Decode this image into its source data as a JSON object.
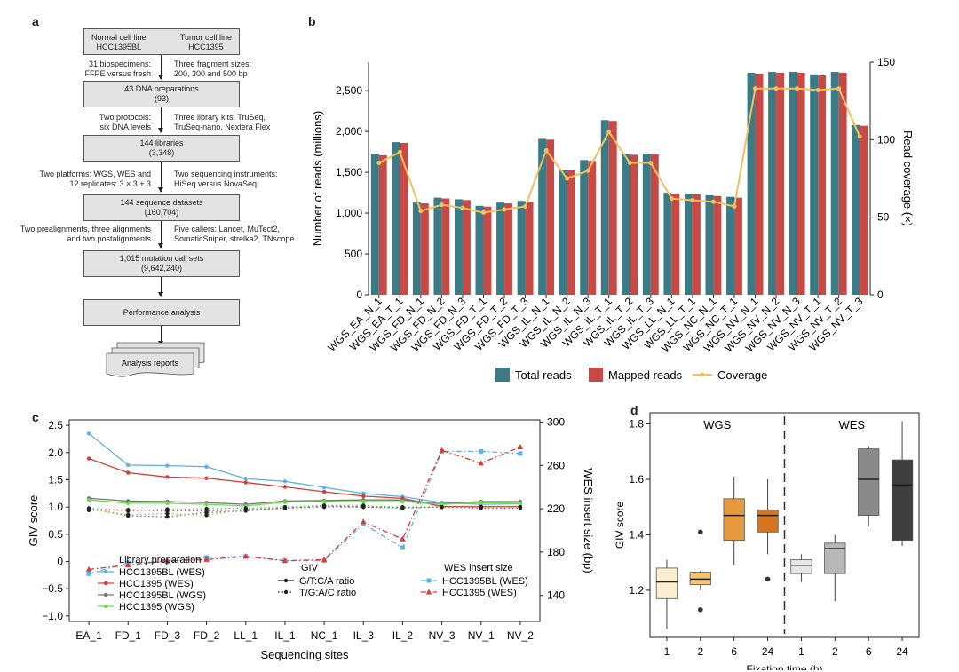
{
  "panels": {
    "a": "a",
    "b": "b",
    "c": "c",
    "d": "d"
  },
  "flow": {
    "normal": [
      "Normal cell line",
      "HCC1395BL"
    ],
    "tumor": [
      "Tumor cell line",
      "HCC1395"
    ],
    "step1_left": [
      "31 biospecimens:",
      "FFPE versus fresh"
    ],
    "step1_right": [
      "Three fragment sizes:",
      "200, 300 and 500 bp"
    ],
    "box_dna": [
      "43 DNA preparations",
      "(93)"
    ],
    "step2_left": [
      "Two protocols:",
      "six DNA levels"
    ],
    "step2_right": [
      "Three library kits: TruSeq,",
      "TruSeq-nano, Nextera Flex"
    ],
    "box_lib": [
      "144 libraries",
      "(3,348)"
    ],
    "step3_left": [
      "Two platforms: WGS, WES and",
      "12 replicates: 3 × 3 + 3"
    ],
    "step3_right": [
      "Two sequencing instruments:",
      "HiSeq versus NovaSeq"
    ],
    "box_seq": [
      "144 sequence datasets",
      "(160,704)"
    ],
    "step4_left": [
      "Two prealignments, three alignments",
      "and two postalignments"
    ],
    "step4_right": [
      "Five callers: Lancet, MuTect2,",
      "SomaticSniper, strelka2, TNscope"
    ],
    "box_calls": [
      "1,015 mutation call sets",
      "(9,642,240)"
    ],
    "box_perf": "Performance analysis",
    "box_reports": "Analysis reports"
  },
  "chart_data": [
    {
      "panel": "b",
      "type": "bar",
      "categories": [
        "WGS_EA_N_1",
        "WGS_EA_T_1",
        "WGS_FD_N_1",
        "WGS_FD_N_2",
        "WGS_FD_N_3",
        "WGS_FD_T_1",
        "WGS_FD_T_2",
        "WGS_FD_T_3",
        "WGS_IL_N_1",
        "WGS_IL_N_2",
        "WGS_IL_N_3",
        "WGS_IL_T_1",
        "WGS_IL_T_2",
        "WGS_IL_T_3",
        "WGS_LL_N_1",
        "WGS_LL_T_1",
        "WGS_NC_N_1",
        "WGS_NC_T_1",
        "WGS_NV_N_1",
        "WGS_NV_N_2",
        "WGS_NV_N_3",
        "WGS_NV_T_1",
        "WGS_NV_T_2",
        "WGS_NV_T_3"
      ],
      "series": [
        {
          "name": "Total reads",
          "color": "#3a7b85",
          "values": [
            1720,
            1870,
            1130,
            1190,
            1170,
            1090,
            1130,
            1150,
            1910,
            1530,
            1650,
            2140,
            1720,
            1730,
            1250,
            1240,
            1220,
            1200,
            2720,
            2730,
            2730,
            2700,
            2730,
            2080
          ]
        },
        {
          "name": "Mapped reads",
          "color": "#c84a46",
          "values": [
            1710,
            1860,
            1120,
            1180,
            1160,
            1080,
            1120,
            1140,
            1900,
            1525,
            1640,
            2130,
            1715,
            1720,
            1240,
            1230,
            1210,
            1190,
            2710,
            2720,
            2720,
            2690,
            2720,
            2070
          ]
        },
        {
          "name": "Coverage",
          "color": "#f2c05c",
          "axis": "right",
          "values": [
            85,
            92,
            54,
            58,
            56,
            53,
            55,
            57,
            93,
            75,
            80,
            105,
            85,
            85,
            62,
            61,
            60,
            57,
            133,
            133,
            133,
            132,
            133,
            102
          ]
        }
      ],
      "ylabel": "Number of reads (millions)",
      "y2label": "Read coverage (×)",
      "ylim": [
        0,
        2850
      ],
      "yticks": [
        0,
        500,
        1000,
        1500,
        2000,
        2500
      ],
      "ytick_labels": [
        "0",
        "500",
        "1,000",
        "1,500",
        "2,000",
        "2,500"
      ],
      "y2lim": [
        0,
        150
      ],
      "y2ticks": [
        0,
        50,
        100,
        150
      ],
      "legend": [
        "Total reads",
        "Mapped reads",
        "Coverage"
      ],
      "legend_position": "bottom"
    },
    {
      "panel": "c",
      "type": "line",
      "categories": [
        "EA_1",
        "FD_1",
        "FD_3",
        "FD_2",
        "LL_1",
        "IL_1",
        "NC_1",
        "IL_3",
        "IL_2",
        "NV_3",
        "NV_1",
        "NV_2"
      ],
      "xlabel": "Sequencing sites",
      "ylabel": "GIV score",
      "y2label": "WES insert size (bp)",
      "ylim": [
        -1.1,
        2.6
      ],
      "yticks": [
        -1.0,
        -0.5,
        0,
        0.5,
        1.0,
        1.5,
        2.0,
        2.5
      ],
      "ytick_labels": [
        "−1.0",
        "−0.5",
        "0",
        "0.5",
        "1.0",
        "1.5",
        "2.0",
        "2.5"
      ],
      "y2lim": [
        116,
        302
      ],
      "y2ticks": [
        140,
        180,
        220,
        260,
        300
      ],
      "series": [
        {
          "name": "HCC1395BL (WES) G/T:C/A",
          "color": "#5ab4e8",
          "style": "solid",
          "values": [
            2.35,
            1.77,
            1.76,
            1.74,
            1.52,
            1.47,
            1.36,
            1.25,
            1.19,
            1.08,
            1.05,
            1.06
          ]
        },
        {
          "name": "HCC1395 (WES) G/T:C/A",
          "color": "#d93b35",
          "style": "solid",
          "values": [
            1.89,
            1.63,
            1.55,
            1.53,
            1.45,
            1.37,
            1.28,
            1.2,
            1.16,
            1.01,
            1.01,
            1.01
          ]
        },
        {
          "name": "HCC1395BL (WGS) G/T:C/A",
          "color": "#777777",
          "style": "solid",
          "values": [
            1.16,
            1.11,
            1.1,
            1.08,
            1.05,
            1.11,
            1.12,
            1.13,
            1.13,
            1.06,
            1.1,
            1.1
          ]
        },
        {
          "name": "HCC1395 (WGS) G/T:C/A",
          "color": "#6cdd4a",
          "style": "solid",
          "values": [
            1.13,
            1.07,
            1.07,
            1.05,
            1.02,
            1.09,
            1.1,
            1.1,
            1.1,
            1.05,
            1.08,
            1.07
          ]
        },
        {
          "name": "HCC1395BL (WES) T/G:A/C",
          "color": "#5ab4e8",
          "style": "dotted",
          "values": [
            0.98,
            0.93,
            0.96,
            0.97,
            0.98,
            1.0,
            1.02,
            1.02,
            1.0,
            1.0,
            1.0,
            1.0
          ]
        },
        {
          "name": "HCC1395 (WES) T/G:A/C",
          "color": "#d93b35",
          "style": "dotted",
          "values": [
            0.94,
            0.95,
            0.93,
            0.93,
            0.95,
            0.98,
            1.0,
            1.0,
            0.99,
            1.0,
            0.98,
            0.98
          ]
        },
        {
          "name": "HCC1395BL (WGS) T/G:A/C",
          "color": "#777777",
          "style": "dotted",
          "values": [
            0.97,
            0.84,
            0.82,
            0.9,
            0.93,
            0.98,
            1.02,
            1.0,
            0.98,
            1.0,
            1.0,
            1.0
          ]
        },
        {
          "name": "HCC1395 (WGS) T/G:A/C",
          "color": "#6cdd4a",
          "style": "dotted",
          "values": [
            0.96,
            0.86,
            0.88,
            0.85,
            0.96,
            1.0,
            1.03,
            1.03,
            0.98,
            1.0,
            1.0,
            1.0
          ]
        },
        {
          "name": "HCC1395BL (WES) insert size",
          "color": "#5ab4e8",
          "style": "dashdot",
          "axis": "right",
          "marker": "square",
          "values": [
            160,
            170,
            171,
            175,
            176,
            172,
            172,
            206,
            184,
            273,
            273,
            271
          ]
        },
        {
          "name": "HCC1395 (WES) insert size",
          "color": "#d93b35",
          "style": "dashdot",
          "axis": "right",
          "marker": "triangle",
          "values": [
            164,
            168,
            172,
            173,
            176,
            172,
            173,
            208,
            192,
            274,
            262,
            277
          ]
        }
      ],
      "legend": {
        "library_title": "Library preparation",
        "library": [
          {
            "label": "HCC1395BL (WES)",
            "color": "#5ab4e8"
          },
          {
            "label": "HCC1395 (WES)",
            "color": "#d93b35"
          },
          {
            "label": "HCC1395BL (WGS)",
            "color": "#777777"
          },
          {
            "label": "HCC1395 (WGS)",
            "color": "#6cdd4a"
          }
        ],
        "giv_title": "GIV",
        "giv": [
          {
            "label": "G/T:C/A ratio",
            "style": "solid"
          },
          {
            "label": "T/G:A/C ratio",
            "style": "dotted"
          }
        ],
        "wes_title": "WES insert size",
        "wes": [
          {
            "label": "HCC1395BL (WES)",
            "color": "#5ab4e8"
          },
          {
            "label": "HCC1395 (WES)",
            "color": "#d93b35"
          }
        ]
      }
    },
    {
      "panel": "d",
      "type": "box",
      "xlabel": "Fixation time (h)",
      "ylabel": "GIV score",
      "groups": [
        "WGS",
        "WES"
      ],
      "ylim": [
        1.03,
        1.84
      ],
      "yticks": [
        1.2,
        1.4,
        1.6,
        1.8
      ],
      "boxes": [
        {
          "group": "WGS",
          "label": "1",
          "color": "#fbefcf",
          "min": 1.06,
          "q1": 1.17,
          "median": 1.23,
          "q3": 1.28,
          "max": 1.31,
          "outliers": []
        },
        {
          "group": "WGS",
          "label": "2",
          "color": "#f4c56a",
          "min": 1.2,
          "q1": 1.22,
          "median": 1.24,
          "q3": 1.265,
          "max": 1.27,
          "outliers": [
            1.41,
            1.13
          ]
        },
        {
          "group": "WGS",
          "label": "6",
          "color": "#e59a3e",
          "min": 1.29,
          "q1": 1.38,
          "median": 1.47,
          "q3": 1.53,
          "max": 1.61,
          "outliers": []
        },
        {
          "group": "WGS",
          "label": "24",
          "color": "#d8731f",
          "min": 1.33,
          "q1": 1.41,
          "median": 1.47,
          "q3": 1.49,
          "max": 1.6,
          "outliers": [
            1.24
          ]
        },
        {
          "group": "WES",
          "label": "1",
          "color": "#e6e6e6",
          "min": 1.23,
          "q1": 1.26,
          "median": 1.29,
          "q3": 1.31,
          "max": 1.33,
          "outliers": []
        },
        {
          "group": "WES",
          "label": "2",
          "color": "#b8b8b8",
          "min": 1.16,
          "q1": 1.26,
          "median": 1.35,
          "q3": 1.37,
          "max": 1.4,
          "outliers": []
        },
        {
          "group": "WES",
          "label": "6",
          "color": "#8a8a8a",
          "min": 1.43,
          "q1": 1.47,
          "median": 1.6,
          "q3": 1.71,
          "max": 1.72,
          "outliers": []
        },
        {
          "group": "WES",
          "label": "24",
          "color": "#3e3e3e",
          "min": 1.36,
          "q1": 1.38,
          "median": 1.58,
          "q3": 1.67,
          "max": 1.81,
          "outliers": []
        }
      ]
    }
  ]
}
